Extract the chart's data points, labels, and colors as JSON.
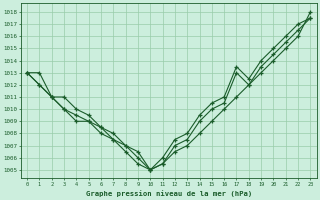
{
  "bg_color": "#cceedd",
  "grid_color": "#99ccaa",
  "line_color": "#1a5c2a",
  "title": "Graphe pression niveau de la mer (hPa)",
  "ylabel_labels": [
    1005,
    1006,
    1007,
    1008,
    1009,
    1010,
    1011,
    1012,
    1013,
    1014,
    1015,
    1016,
    1017,
    1018
  ],
  "ylim": [
    1004.3,
    1018.7
  ],
  "xlim": [
    -0.5,
    23.5
  ],
  "xtick_labels": [
    "0",
    "1",
    "2",
    "3",
    "4",
    "5",
    "6",
    "7",
    "8",
    "9",
    "10",
    "11",
    "12",
    "13",
    "14",
    "15",
    "16",
    "17",
    "18",
    "19",
    "20",
    "21",
    "22",
    "23"
  ],
  "line1": [
    1013.0,
    1012.0,
    1011.0,
    1011.0,
    1010.0,
    1009.5,
    1008.5,
    1008.0,
    1007.0,
    1006.0,
    1005.0,
    1006.0,
    1007.5,
    1008.0,
    1009.5,
    1010.5,
    1011.0,
    1013.5,
    1012.5,
    1014.0,
    1015.0,
    1016.0,
    1017.0,
    1017.5
  ],
  "line2": [
    1013.0,
    1012.0,
    1011.0,
    1010.0,
    1009.5,
    1009.0,
    1008.5,
    1007.5,
    1006.5,
    1005.5,
    1005.0,
    1005.5,
    1007.0,
    1007.5,
    1009.0,
    1010.0,
    1010.5,
    1013.0,
    1012.0,
    1013.5,
    1014.5,
    1015.5,
    1016.5,
    1017.5
  ],
  "line3": [
    1013.0,
    1013.0,
    1011.0,
    1010.0,
    1009.0,
    1009.0,
    1008.0,
    1007.5,
    1007.0,
    1006.5,
    1005.0,
    1005.5,
    1006.5,
    1007.0,
    1008.0,
    1009.0,
    1010.0,
    1011.0,
    1012.0,
    1013.0,
    1014.0,
    1015.0,
    1016.0,
    1018.0
  ]
}
